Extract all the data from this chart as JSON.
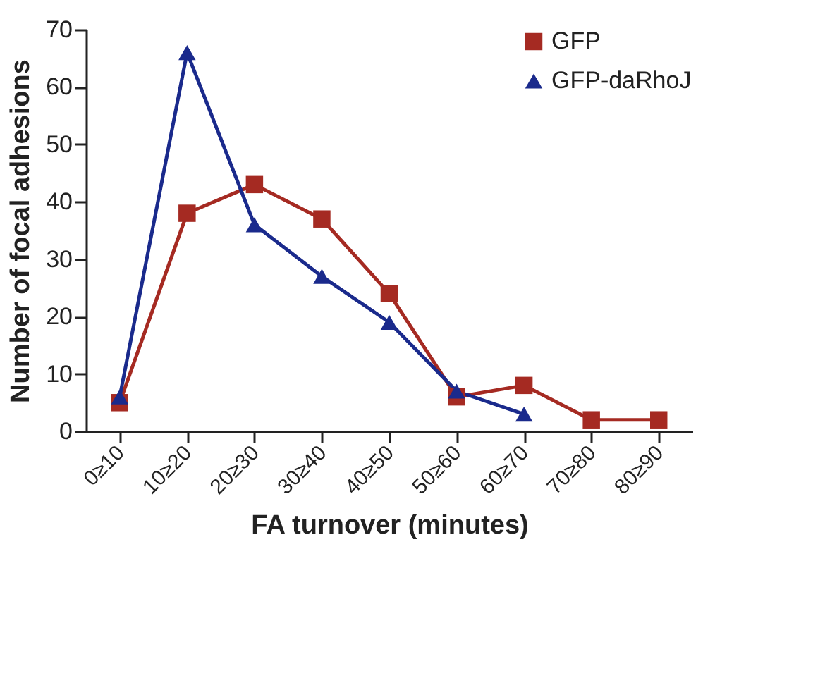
{
  "chart_data": {
    "type": "line",
    "xlabel": "FA turnover (minutes)",
    "ylabel": "Number of focal adhesions",
    "categories": [
      "0≥10",
      "10≥20",
      "20≥30",
      "30≥40",
      "40≥50",
      "50≥60",
      "60≥70",
      "70≥80",
      "80≥90"
    ],
    "series": [
      {
        "name": "GFP",
        "color": "#a52a22",
        "marker": "square",
        "values": [
          5,
          38,
          43,
          37,
          24,
          6,
          8,
          2,
          2
        ]
      },
      {
        "name": "GFP-daRhoJ",
        "color": "#1a2a8c",
        "marker": "triangle",
        "values": [
          6,
          66,
          36,
          27,
          19,
          7,
          3,
          null,
          null
        ]
      }
    ],
    "ylim": [
      0,
      70
    ],
    "yticks": [
      0,
      10,
      20,
      30,
      40,
      50,
      60,
      70
    ],
    "grid": false,
    "legend": "top right",
    "line_style": "solid"
  }
}
